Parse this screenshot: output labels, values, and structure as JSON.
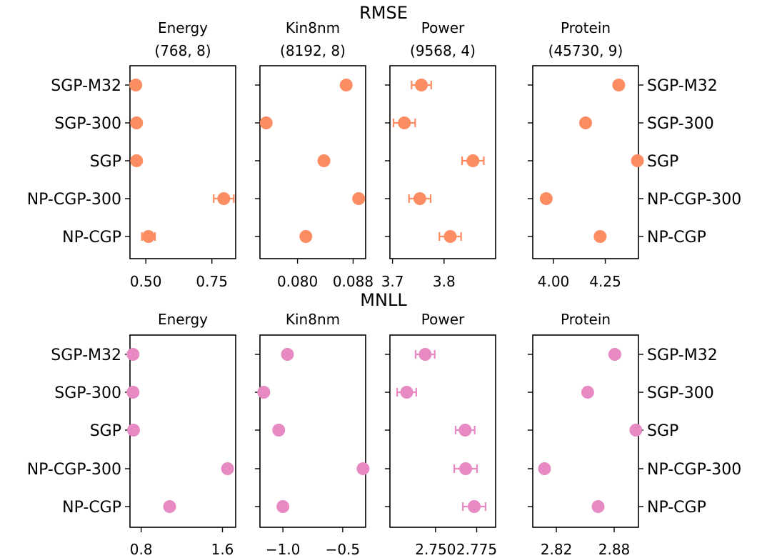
{
  "chart_data": {
    "type": "scatter",
    "suptitles": [
      "RMSE",
      "MNLL"
    ],
    "methods": [
      "SGP-M32",
      "SGP-300",
      "SGP",
      "NP-CGP-300",
      "NP-CGP"
    ],
    "colors": {
      "rmse_sgp": "#fc8d62",
      "rmse_cgp": "#66c2a5",
      "mnll_sgp": "#e78ac3",
      "mnll_cgp": "#8da0cb"
    },
    "markers": {
      "sgp": "circle",
      "cgp": "triangle"
    },
    "rows": [
      {
        "metric": "RMSE",
        "panels": [
          {
            "title": "Energy",
            "subtitle": "(768, 8)",
            "xlim": [
              0.44,
              0.84
            ],
            "xticks": [
              0.5,
              0.75
            ],
            "xticklabels": [
              "0.50",
              "0.75"
            ],
            "points": [
              {
                "method": "SGP-M32",
                "x": 0.462,
                "err": 0
              },
              {
                "method": "SGP-300",
                "x": 0.465,
                "err": 0
              },
              {
                "method": "SGP",
                "x": 0.465,
                "err": 0
              },
              {
                "method": "NP-CGP-300",
                "x": 0.795,
                "err": 0.038
              },
              {
                "method": "NP-CGP",
                "x": 0.51,
                "err": 0.025
              }
            ]
          },
          {
            "title": "Kin8nm",
            "subtitle": "(8192, 8)",
            "xlim": [
              0.0746,
              0.0898
            ],
            "xticks": [
              0.08,
              0.088
            ],
            "xticklabels": [
              "0.080",
              "0.088"
            ],
            "points": [
              {
                "method": "SGP-M32",
                "x": 0.087,
                "err": 0
              },
              {
                "method": "SGP-300",
                "x": 0.0755,
                "err": 0
              },
              {
                "method": "SGP",
                "x": 0.0838,
                "err": 0
              },
              {
                "method": "NP-CGP-300",
                "x": 0.0888,
                "err": 0.0003
              },
              {
                "method": "NP-CGP",
                "x": 0.0812,
                "err": 0.0003
              }
            ]
          },
          {
            "title": "Power",
            "subtitle": "(9568, 4)",
            "xlim": [
              3.695,
              3.9
            ],
            "xticks": [
              3.7,
              3.8
            ],
            "xticklabels": [
              "3.7",
              "3.8"
            ],
            "points": [
              {
                "method": "SGP-M32",
                "x": 3.756,
                "err": 0.019
              },
              {
                "method": "SGP-300",
                "x": 3.723,
                "err": 0.021
              },
              {
                "method": "SGP",
                "x": 3.856,
                "err": 0.021
              },
              {
                "method": "NP-CGP-300",
                "x": 3.753,
                "err": 0.021
              },
              {
                "method": "NP-CGP",
                "x": 3.812,
                "err": 0.021
              }
            ]
          },
          {
            "title": "Protein",
            "subtitle": "(45730, 9)",
            "xlim": [
              3.9,
              4.41
            ],
            "xticks": [
              4.0,
              4.25
            ],
            "xticklabels": [
              "4.00",
              "4.25"
            ],
            "points": [
              {
                "method": "SGP-M32",
                "x": 4.315,
                "err": 0
              },
              {
                "method": "SGP-300",
                "x": 4.155,
                "err": 0
              },
              {
                "method": "SGP",
                "x": 4.405,
                "err": 0
              },
              {
                "method": "NP-CGP-300",
                "x": 3.965,
                "err": 0
              },
              {
                "method": "NP-CGP",
                "x": 4.225,
                "err": 0
              }
            ]
          }
        ]
      },
      {
        "metric": "MNLL",
        "panels": [
          {
            "title": "Energy",
            "subtitle": "",
            "xlim": [
              0.69,
              1.73
            ],
            "xticks": [
              0.8,
              1.6
            ],
            "xticklabels": [
              "0.8",
              "1.6"
            ],
            "points": [
              {
                "method": "SGP-M32",
                "x": 0.72,
                "err": 0
              },
              {
                "method": "SGP-300",
                "x": 0.72,
                "err": 0
              },
              {
                "method": "SGP",
                "x": 0.725,
                "err": 0
              },
              {
                "method": "NP-CGP-300",
                "x": 1.65,
                "err": 0.035
              },
              {
                "method": "NP-CGP",
                "x": 1.08,
                "err": 0.025
              }
            ]
          },
          {
            "title": "Kin8nm",
            "subtitle": "",
            "xlim": [
              -1.192,
              -0.308
            ],
            "xticks": [
              -1.0,
              -0.5
            ],
            "xticklabels": [
              "−1.0",
              "−0.5"
            ],
            "points": [
              {
                "method": "SGP-M32",
                "x": -0.962,
                "err": 0
              },
              {
                "method": "SGP-300",
                "x": -1.16,
                "err": 0
              },
              {
                "method": "SGP",
                "x": -1.035,
                "err": 0
              },
              {
                "method": "NP-CGP-300",
                "x": -0.33,
                "err": 0.01
              },
              {
                "method": "NP-CGP",
                "x": -1.0,
                "err": 0.008
              }
            ]
          },
          {
            "title": "Power",
            "subtitle": "",
            "xlim": [
              2.7223,
              2.7865
            ],
            "xticks": [
              2.75,
              2.775
            ],
            "xticklabels": [
              "2.750",
              "2.775"
            ],
            "points": [
              {
                "method": "SGP-M32",
                "x": 2.7437,
                "err": 0.0058
              },
              {
                "method": "SGP-300",
                "x": 2.7325,
                "err": 0.0058
              },
              {
                "method": "SGP",
                "x": 2.768,
                "err": 0.0058
              },
              {
                "method": "NP-CGP-300",
                "x": 2.7683,
                "err": 0.0069
              },
              {
                "method": "NP-CGP",
                "x": 2.7735,
                "err": 0.0069
              }
            ]
          },
          {
            "title": "Protein",
            "subtitle": "",
            "xlim": [
              2.7955,
              2.9052
            ],
            "xticks": [
              2.82,
              2.88
            ],
            "xticklabels": [
              "2.82",
              "2.88"
            ],
            "points": [
              {
                "method": "SGP-M32",
                "x": 2.8807,
                "err": 0
              },
              {
                "method": "SGP-300",
                "x": 2.8525,
                "err": 0
              },
              {
                "method": "SGP",
                "x": 2.9025,
                "err": 0
              },
              {
                "method": "NP-CGP-300",
                "x": 2.8077,
                "err": 0
              },
              {
                "method": "NP-CGP",
                "x": 2.8633,
                "err": 0
              }
            ]
          }
        ]
      }
    ]
  }
}
